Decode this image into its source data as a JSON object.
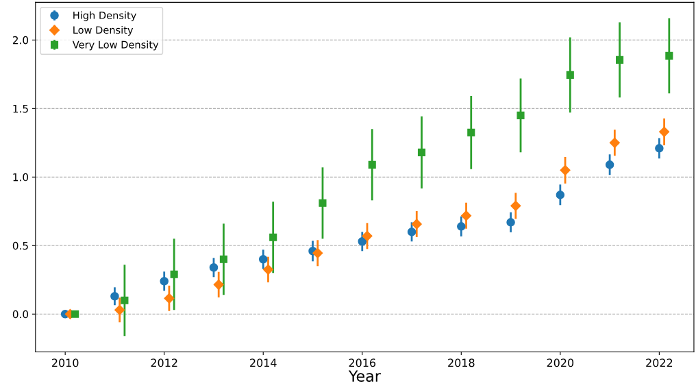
{
  "chart_data": {
    "type": "scatter",
    "xlabel": "Year",
    "series": [
      {
        "name": "High Density",
        "color": "#1f77b4",
        "marker": "circle",
        "x": [
          2010,
          2011,
          2012,
          2013,
          2014,
          2015,
          2016,
          2017,
          2018,
          2019,
          2020,
          2021,
          2022
        ],
        "values": [
          0.0,
          0.13,
          0.24,
          0.34,
          0.4,
          0.46,
          0.53,
          0.6,
          0.64,
          0.67,
          0.87,
          1.09,
          1.21
        ],
        "errors": [
          0,
          0.065,
          0.07,
          0.07,
          0.07,
          0.075,
          0.07,
          0.07,
          0.073,
          0.073,
          0.075,
          0.075,
          0.074
        ]
      },
      {
        "name": "Low Density",
        "color": "#ff7f0e",
        "marker": "diamond",
        "x": [
          2010.1,
          2011.1,
          2012.1,
          2013.1,
          2014.1,
          2015.1,
          2016.1,
          2017.1,
          2018.1,
          2019.1,
          2020.1,
          2021.1,
          2022.1
        ],
        "values": [
          0.0,
          0.03,
          0.115,
          0.215,
          0.325,
          0.445,
          0.57,
          0.657,
          0.718,
          0.79,
          1.05,
          1.25,
          1.33
        ],
        "errors": [
          0,
          0.09,
          0.093,
          0.093,
          0.093,
          0.095,
          0.095,
          0.095,
          0.095,
          0.095,
          0.097,
          0.095,
          0.098
        ]
      },
      {
        "name": "Very Low Density",
        "color": "#2ca02c",
        "marker": "square",
        "x": [
          2010.2,
          2011.2,
          2012.2,
          2013.2,
          2014.2,
          2015.2,
          2016.2,
          2017.2,
          2018.2,
          2019.2,
          2020.2,
          2021.2,
          2022.2
        ],
        "values": [
          0.0,
          0.1,
          0.29,
          0.4,
          0.56,
          0.81,
          1.09,
          1.18,
          1.325,
          1.45,
          1.745,
          1.855,
          1.885
        ],
        "errors": [
          0,
          0.26,
          0.26,
          0.26,
          0.26,
          0.26,
          0.26,
          0.263,
          0.267,
          0.27,
          0.275,
          0.275,
          0.275
        ]
      }
    ],
    "xlim": [
      2009.4,
      2022.7
    ],
    "xticks": [
      2010,
      2012,
      2014,
      2016,
      2018,
      2020,
      2022
    ],
    "ylim": [
      -0.275,
      2.275
    ],
    "yticks": [
      {
        "value": 0,
        "label": "0.0"
      },
      {
        "value": 0.5,
        "label": "0.5"
      },
      {
        "value": 1,
        "label": "1.0"
      },
      {
        "value": 1.5,
        "label": "1.5"
      },
      {
        "value": 2,
        "label": "2.0"
      }
    ],
    "grid": "y",
    "legend": "top left"
  }
}
